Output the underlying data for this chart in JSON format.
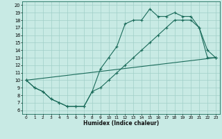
{
  "title": "",
  "xlabel": "Humidex (Indice chaleur)",
  "xlim": [
    -0.5,
    23.5
  ],
  "ylim": [
    5.5,
    20.5
  ],
  "xticks": [
    0,
    1,
    2,
    3,
    4,
    5,
    6,
    7,
    8,
    9,
    10,
    11,
    12,
    13,
    14,
    15,
    16,
    17,
    18,
    19,
    20,
    21,
    22,
    23
  ],
  "yticks": [
    6,
    7,
    8,
    9,
    10,
    11,
    12,
    13,
    14,
    15,
    16,
    17,
    18,
    19,
    20
  ],
  "bg_color": "#c8eae4",
  "grid_color": "#a0cfc8",
  "line_color": "#1a6b5a",
  "series1_x": [
    0,
    1,
    2,
    3,
    4,
    5,
    6,
    7,
    8,
    9,
    10,
    11,
    12,
    13,
    14,
    15,
    16,
    17,
    18,
    19,
    20,
    21,
    22,
    23
  ],
  "series1_y": [
    10,
    9,
    8.5,
    7.5,
    7,
    6.5,
    6.5,
    6.5,
    8.5,
    11.5,
    13,
    14.5,
    17.5,
    18,
    18,
    19.5,
    18.5,
    18.5,
    19,
    18.5,
    18.5,
    17,
    14,
    13
  ],
  "series2_x": [
    0,
    1,
    2,
    3,
    4,
    5,
    6,
    7,
    8,
    9,
    10,
    11,
    12,
    13,
    14,
    15,
    16,
    17,
    18,
    19,
    20,
    21,
    22,
    23
  ],
  "series2_y": [
    10,
    9,
    8.5,
    7.5,
    7,
    6.5,
    6.5,
    6.5,
    8.5,
    9,
    10,
    11,
    12,
    13,
    14,
    15,
    16,
    17,
    18,
    18,
    18,
    17,
    13,
    13
  ],
  "series3_x": [
    0,
    23
  ],
  "series3_y": [
    10,
    13
  ]
}
